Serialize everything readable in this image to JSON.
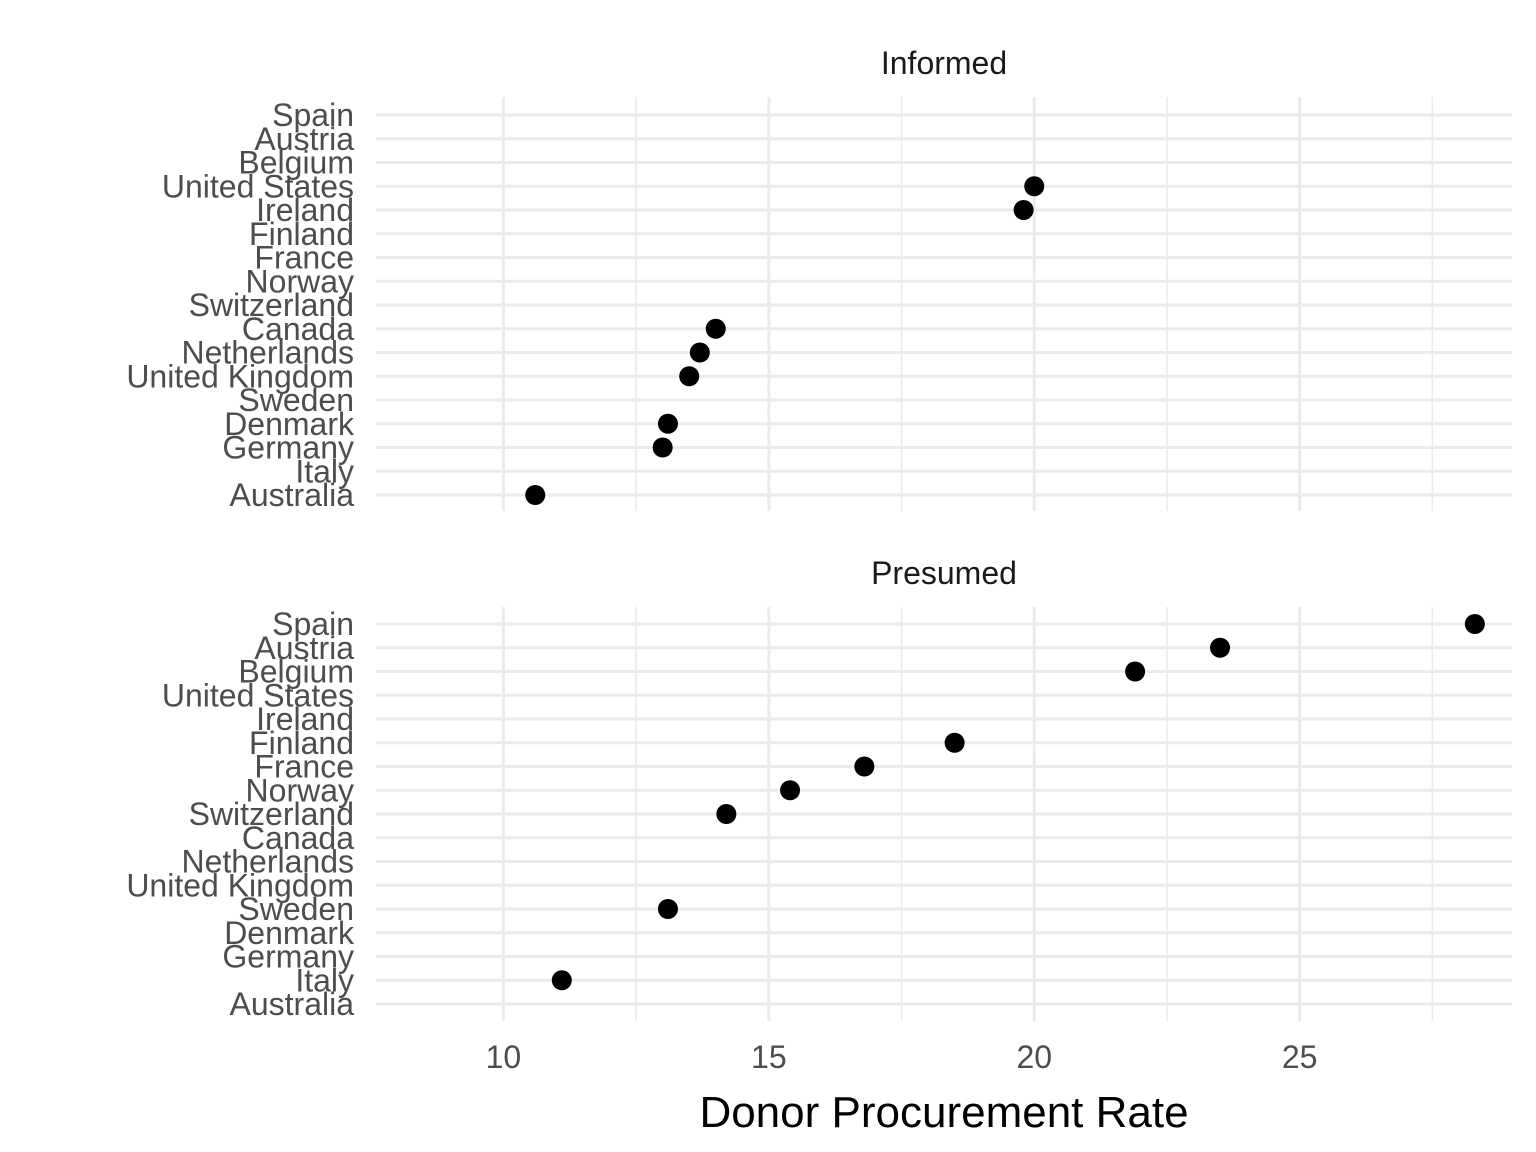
{
  "chart_data": {
    "type": "scatter",
    "xlabel": "Donor Procurement Rate",
    "xlim": [
      7.6,
      29.0
    ],
    "x_ticks": [
      10,
      15,
      20,
      25
    ],
    "categories": [
      "Spain",
      "Austria",
      "Belgium",
      "United States",
      "Ireland",
      "Finland",
      "France",
      "Norway",
      "Switzerland",
      "Canada",
      "Netherlands",
      "United Kingdom",
      "Sweden",
      "Denmark",
      "Germany",
      "Italy",
      "Australia"
    ],
    "grid": true,
    "panels": [
      {
        "label": "Informed",
        "points": [
          {
            "country": "United States",
            "value": 20.0
          },
          {
            "country": "Ireland",
            "value": 19.8
          },
          {
            "country": "Canada",
            "value": 14.0
          },
          {
            "country": "Netherlands",
            "value": 13.7
          },
          {
            "country": "United Kingdom",
            "value": 13.5
          },
          {
            "country": "Denmark",
            "value": 13.1
          },
          {
            "country": "Germany",
            "value": 13.0
          },
          {
            "country": "Australia",
            "value": 10.6
          }
        ]
      },
      {
        "label": "Presumed",
        "points": [
          {
            "country": "Spain",
            "value": 28.3
          },
          {
            "country": "Austria",
            "value": 23.5
          },
          {
            "country": "Belgium",
            "value": 21.9
          },
          {
            "country": "Finland",
            "value": 18.5
          },
          {
            "country": "France",
            "value": 16.8
          },
          {
            "country": "Norway",
            "value": 15.4
          },
          {
            "country": "Switzerland",
            "value": 14.2
          },
          {
            "country": "Sweden",
            "value": 13.1
          },
          {
            "country": "Italy",
            "value": 11.1
          }
        ]
      }
    ]
  }
}
